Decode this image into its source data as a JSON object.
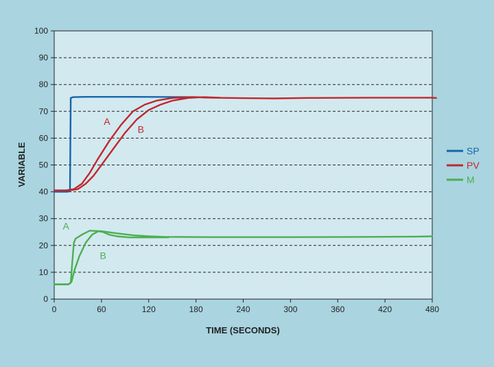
{
  "chart_data": {
    "type": "line",
    "title": "",
    "xlabel": "TIME (SECONDS)",
    "ylabel": "VARIABLE",
    "xlim": [
      0,
      480
    ],
    "ylim": [
      0,
      100
    ],
    "x_ticks": [
      0,
      60,
      120,
      180,
      240,
      300,
      360,
      420,
      480
    ],
    "y_ticks": [
      0,
      10,
      20,
      30,
      40,
      50,
      60,
      70,
      80,
      90,
      100
    ],
    "grid": "horizontal dashed",
    "legend_position": "right",
    "colors": {
      "background": "#a9d4e0",
      "plot_area": "#d2e9f0",
      "sp": "#1565a8",
      "pv": "#c0282d",
      "m": "#4caf50"
    },
    "series": [
      {
        "name": "SP",
        "color": "#1565a8",
        "points": [
          [
            0,
            40
          ],
          [
            17,
            40
          ],
          [
            20,
            40.5
          ],
          [
            21,
            75
          ],
          [
            24,
            75.3
          ],
          [
            40,
            75.4
          ],
          [
            100,
            75.4
          ],
          [
            180,
            75.3
          ],
          [
            200,
            75.1
          ]
        ]
      },
      {
        "name": "PV",
        "variant": "A",
        "color": "#c0282d",
        "points": [
          [
            0,
            40.5
          ],
          [
            15,
            40.5
          ],
          [
            25,
            41
          ],
          [
            35,
            43
          ],
          [
            45,
            47
          ],
          [
            55,
            52
          ],
          [
            70,
            59
          ],
          [
            85,
            65
          ],
          [
            100,
            70
          ],
          [
            115,
            72.5
          ],
          [
            130,
            74
          ],
          [
            150,
            75
          ],
          [
            175,
            75.3
          ],
          [
            200,
            75.1
          ],
          [
            240,
            74.9
          ],
          [
            280,
            74.8
          ],
          [
            320,
            75
          ],
          [
            400,
            75.1
          ],
          [
            480,
            75.1
          ],
          [
            485,
            75
          ]
        ]
      },
      {
        "name": "PV",
        "variant": "B",
        "color": "#c0282d",
        "points": [
          [
            0,
            40.5
          ],
          [
            20,
            40.5
          ],
          [
            30,
            41
          ],
          [
            40,
            43
          ],
          [
            50,
            46
          ],
          [
            60,
            50
          ],
          [
            75,
            56
          ],
          [
            90,
            62
          ],
          [
            105,
            67
          ],
          [
            120,
            70.5
          ],
          [
            135,
            72.5
          ],
          [
            150,
            74
          ],
          [
            170,
            75
          ],
          [
            190,
            75.3
          ],
          [
            210,
            75.1
          ]
        ]
      },
      {
        "name": "M",
        "variant": "A",
        "color": "#4caf50",
        "points": [
          [
            0,
            5.5
          ],
          [
            18,
            5.5
          ],
          [
            21,
            6
          ],
          [
            23,
            14
          ],
          [
            25,
            21
          ],
          [
            27,
            22.5
          ],
          [
            35,
            24
          ],
          [
            45,
            25.5
          ],
          [
            60,
            25.3
          ],
          [
            80,
            24.5
          ],
          [
            100,
            23.8
          ],
          [
            120,
            23.4
          ],
          [
            140,
            23.2
          ],
          [
            200,
            23.1
          ],
          [
            300,
            23.1
          ],
          [
            400,
            23.2
          ],
          [
            460,
            23.3
          ],
          [
            480,
            23.4
          ]
        ]
      },
      {
        "name": "M",
        "variant": "B",
        "color": "#4caf50",
        "points": [
          [
            0,
            5.5
          ],
          [
            18,
            5.5
          ],
          [
            22,
            6.5
          ],
          [
            26,
            11
          ],
          [
            32,
            16
          ],
          [
            40,
            21
          ],
          [
            48,
            24
          ],
          [
            56,
            25.3
          ],
          [
            62,
            25
          ],
          [
            70,
            24
          ],
          [
            80,
            23.4
          ],
          [
            95,
            23
          ],
          [
            110,
            23
          ],
          [
            130,
            23
          ],
          [
            145,
            23
          ]
        ]
      }
    ],
    "annotations": [
      {
        "text": "A",
        "x": 67,
        "y": 65,
        "color": "#c0282d"
      },
      {
        "text": "B",
        "x": 110,
        "y": 62,
        "color": "#c0282d"
      },
      {
        "text": "A",
        "x": 15,
        "y": 26,
        "color": "#4caf50"
      },
      {
        "text": "B",
        "x": 62,
        "y": 15,
        "color": "#4caf50"
      }
    ],
    "legend": [
      {
        "label": "SP",
        "color": "#1565a8"
      },
      {
        "label": "PV",
        "color": "#c0282d"
      },
      {
        "label": "M",
        "color": "#4caf50"
      }
    ]
  }
}
